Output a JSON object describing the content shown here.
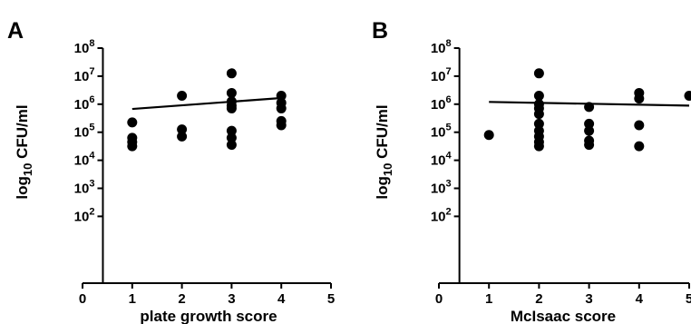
{
  "chart_data": [
    {
      "type": "scatter",
      "panel_label": "A",
      "xlabel": "plate growth score",
      "ylabel": {
        "prefix": "log",
        "subscript": "10",
        "suffix": " CFU/ml"
      },
      "xlim": [
        0,
        5
      ],
      "ylim": [
        1,
        8
      ],
      "xticks": [
        0,
        1,
        2,
        3,
        4,
        5
      ],
      "yticks": [
        {
          "value": 2,
          "base": "10",
          "exp": "2"
        },
        {
          "value": 3,
          "base": "10",
          "exp": "3"
        },
        {
          "value": 4,
          "base": "10",
          "exp": "4"
        },
        {
          "value": 5,
          "base": "10",
          "exp": "5"
        },
        {
          "value": 6,
          "base": "10",
          "exp": "6"
        },
        {
          "value": 7,
          "base": "10",
          "exp": "7"
        },
        {
          "value": 8,
          "base": "10",
          "exp": "8"
        }
      ],
      "points": [
        {
          "x": 1,
          "y": 5.35
        },
        {
          "x": 1,
          "y": 4.8
        },
        {
          "x": 1,
          "y": 4.65
        },
        {
          "x": 1,
          "y": 4.5
        },
        {
          "x": 2,
          "y": 6.3
        },
        {
          "x": 2,
          "y": 5.1
        },
        {
          "x": 2,
          "y": 4.85
        },
        {
          "x": 3,
          "y": 7.1
        },
        {
          "x": 3,
          "y": 6.4
        },
        {
          "x": 3,
          "y": 6.1
        },
        {
          "x": 3,
          "y": 5.85
        },
        {
          "x": 3,
          "y": 5.05
        },
        {
          "x": 3,
          "y": 4.8
        },
        {
          "x": 3,
          "y": 4.55
        },
        {
          "x": 3,
          "y": 5.95
        },
        {
          "x": 4,
          "y": 6.3
        },
        {
          "x": 4,
          "y": 6.05
        },
        {
          "x": 4,
          "y": 5.85
        },
        {
          "x": 4,
          "y": 5.4
        },
        {
          "x": 4,
          "y": 5.25
        }
      ],
      "trendline": {
        "x": [
          1,
          4
        ],
        "y": [
          5.83,
          6.22
        ]
      }
    },
    {
      "type": "scatter",
      "panel_label": "B",
      "xlabel": "McIsaac score",
      "ylabel": {
        "prefix": "log",
        "subscript": "10",
        "suffix": " CFU/ml"
      },
      "xlim": [
        0,
        5
      ],
      "ylim": [
        1,
        8
      ],
      "xticks": [
        0,
        1,
        2,
        3,
        4,
        5
      ],
      "yticks": [
        {
          "value": 2,
          "base": "10",
          "exp": "2"
        },
        {
          "value": 3,
          "base": "10",
          "exp": "3"
        },
        {
          "value": 4,
          "base": "10",
          "exp": "4"
        },
        {
          "value": 5,
          "base": "10",
          "exp": "5"
        },
        {
          "value": 6,
          "base": "10",
          "exp": "6"
        },
        {
          "value": 7,
          "base": "10",
          "exp": "7"
        },
        {
          "value": 8,
          "base": "10",
          "exp": "8"
        }
      ],
      "points": [
        {
          "x": 1,
          "y": 4.9
        },
        {
          "x": 2,
          "y": 7.1
        },
        {
          "x": 2,
          "y": 6.3
        },
        {
          "x": 2,
          "y": 6.0
        },
        {
          "x": 2,
          "y": 5.85
        },
        {
          "x": 2,
          "y": 5.65
        },
        {
          "x": 2,
          "y": 5.3
        },
        {
          "x": 2,
          "y": 5.05
        },
        {
          "x": 2,
          "y": 4.85
        },
        {
          "x": 2,
          "y": 4.65
        },
        {
          "x": 2,
          "y": 4.5
        },
        {
          "x": 3,
          "y": 5.9
        },
        {
          "x": 3,
          "y": 5.3
        },
        {
          "x": 3,
          "y": 5.05
        },
        {
          "x": 3,
          "y": 4.7
        },
        {
          "x": 3,
          "y": 4.55
        },
        {
          "x": 4,
          "y": 6.4
        },
        {
          "x": 4,
          "y": 6.2
        },
        {
          "x": 4,
          "y": 5.25
        },
        {
          "x": 4,
          "y": 4.5
        },
        {
          "x": 5,
          "y": 6.3
        }
      ],
      "trendline": {
        "x": [
          1,
          5
        ],
        "y": [
          6.08,
          5.95
        ]
      }
    }
  ]
}
